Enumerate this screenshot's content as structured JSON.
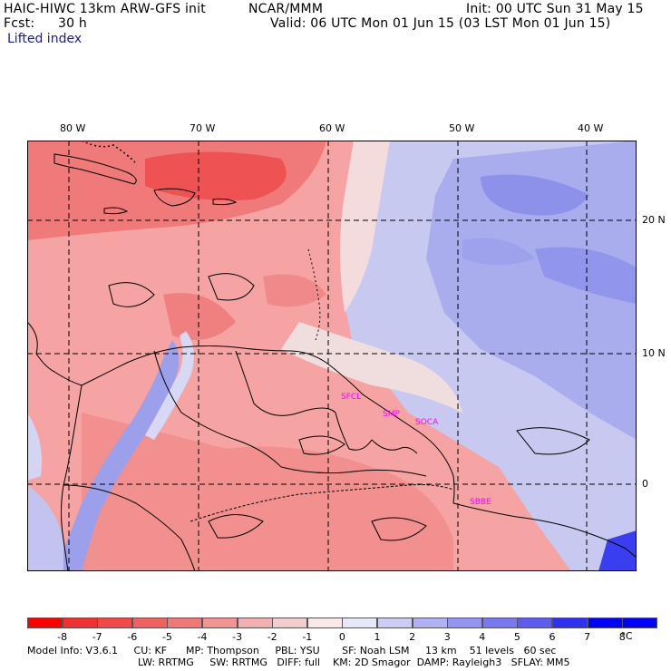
{
  "header": {
    "model": "HAIC-HIWC 13km ARW-GFS init",
    "org": "NCAR/MMM",
    "init": "Init: 00 UTC Sun 31 May 15",
    "fcst_label": "Fcst:",
    "fcst_value": "30 h",
    "valid": "Valid: 06 UTC Mon 01 Jun 15 (03 LST Mon 01 Jun 15)",
    "field": "Lifted index"
  },
  "map": {
    "lon_labels": [
      "80 W",
      "70 W",
      "60 W",
      "50 W",
      "40 W"
    ],
    "lat_labels": [
      "20 N",
      "10 N",
      "0"
    ],
    "sites": [
      "SFCL",
      "SMP",
      "SOCA",
      "SBBE"
    ],
    "colors": {
      "land_border": "#000000",
      "grid": "#000000",
      "site_label": "#ff00ff"
    }
  },
  "colorbar": {
    "ticks": [
      "-8",
      "-7",
      "-6",
      "-5",
      "-4",
      "-3",
      "-2",
      "-1",
      "0",
      "1",
      "2",
      "3",
      "4",
      "5",
      "6",
      "7",
      "8"
    ],
    "unit": "°C",
    "colors": [
      "#ff0000",
      "#f23030",
      "#f24848",
      "#f26060",
      "#f27878",
      "#f29494",
      "#f2b0b0",
      "#f5cccc",
      "#fbe8e8",
      "#e8e8fb",
      "#ccccf5",
      "#b0b0f2",
      "#9494f2",
      "#7878f2",
      "#5c5cf2",
      "#3030f2",
      "#0000ff"
    ]
  },
  "footer": {
    "line1": "Model Info: V3.6.1     CU: KF      MP: Thompson     PBL: YSU       SF: Noah LSM     13 km    51 levels   60 sec",
    "line2": "LW: RRTMG     SW: RRTMG   DIFF: full    KM: 2D Smagor  DAMP: Rayleigh3   SFLAY: MM5"
  }
}
